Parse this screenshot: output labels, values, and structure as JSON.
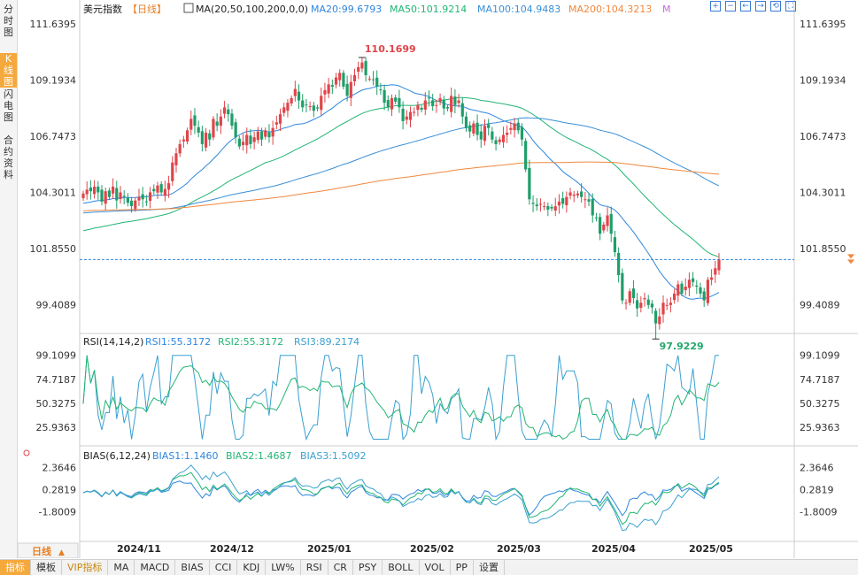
{
  "left_nav": [
    {
      "label": "分时图",
      "active": false
    },
    {
      "label": "K线图",
      "active": true
    },
    {
      "label": "闪电图",
      "active": false
    },
    {
      "label": "合约资料",
      "active": false
    }
  ],
  "header": {
    "title": "美元指数",
    "period": "【日线】",
    "ma_label": "MA(20,50,100,200,0,0)",
    "ma_values": [
      {
        "text": "MA20:99.6793",
        "color": "#2e86de"
      },
      {
        "text": "MA50:101.9214",
        "color": "#22b573"
      },
      {
        "text": "MA100:104.9483",
        "color": "#3a8fd6"
      },
      {
        "text": "MA200:104.3213",
        "color": "#f0883e"
      },
      {
        "text": "M",
        "color": "#c36bd9"
      }
    ]
  },
  "toolbar": [
    "+",
    "−",
    "←",
    "→",
    "⟲",
    "⛶"
  ],
  "chart_data": {
    "type": "candlestick",
    "instrument": "美元指数",
    "period": "日线",
    "y_ticks": [
      "111.6395",
      "109.1934",
      "106.7473",
      "104.3011",
      "101.8550",
      "99.4089"
    ],
    "ylim": [
      98.2,
      111.9
    ],
    "x_ticks": [
      "2024/11",
      "2024/12",
      "2025/01",
      "2025/02",
      "2025/03",
      "2025/04",
      "2025/05"
    ],
    "annotations": {
      "high": "110.1699",
      "low": "97.9229"
    },
    "current_price": 101.38,
    "ohlc_close": [
      104.25,
      104.42,
      104.35,
      104.55,
      104.3,
      103.9,
      104.35,
      104.1,
      104.55,
      103.95,
      104.3,
      104.1,
      103.85,
      103.7,
      103.95,
      104.1,
      104.0,
      103.9,
      104.3,
      104.35,
      104.6,
      104.3,
      104.45,
      104.7,
      105.6,
      106.0,
      106.4,
      106.6,
      107.0,
      107.5,
      107.2,
      106.9,
      106.4,
      106.9,
      106.6,
      107.5,
      107.2,
      107.6,
      108.0,
      107.7,
      107.2,
      106.7,
      106.3,
      106.5,
      106.8,
      106.4,
      106.7,
      106.95,
      106.6,
      107.0,
      106.7,
      107.1,
      107.35,
      107.7,
      108.0,
      108.2,
      108.4,
      108.8,
      108.3,
      108.0,
      108.1,
      108.05,
      107.85,
      107.95,
      108.5,
      108.75,
      109.0,
      108.9,
      109.3,
      109.5,
      108.9,
      108.5,
      109.1,
      109.4,
      109.75,
      109.95,
      109.4,
      109.25,
      109.2,
      108.9,
      108.75,
      108.2,
      108.0,
      108.4,
      108.25,
      108.0,
      107.4,
      107.6,
      107.8,
      107.8,
      108.1,
      107.9,
      108.3,
      108.4,
      108.05,
      108.1,
      108.4,
      107.95,
      107.95,
      108.5,
      108.1,
      108.3,
      107.6,
      107.1,
      106.95,
      107.3,
      106.8,
      106.6,
      107.2,
      107.1,
      106.6,
      106.4,
      106.6,
      106.8,
      106.9,
      107.1,
      107.3,
      107.0,
      106.6,
      105.3,
      104.0,
      103.8,
      103.7,
      103.8,
      103.7,
      103.55,
      103.6,
      103.7,
      103.9,
      103.8,
      104.1,
      104.3,
      104.2,
      104.25,
      104.1,
      104.0,
      103.9,
      103.3,
      103.2,
      102.5,
      102.9,
      103.3,
      102.5,
      101.7,
      100.7,
      99.6,
      99.5,
      100.0,
      99.7,
      99.25,
      99.5,
      99.7,
      99.4,
      99.3,
      98.6,
      98.9,
      99.5,
      99.4,
      99.5,
      99.9,
      100.3,
      99.9,
      100.2,
      100.5,
      100.4,
      100.2,
      99.9,
      99.6,
      100.5,
      100.6,
      101.0,
      101.38
    ],
    "ma_series_names": [
      "MA20",
      "MA50",
      "MA100",
      "MA200"
    ],
    "rsi": {
      "label": "RSI(14,14,2)",
      "values": [
        {
          "text": "RSI1:55.3172",
          "color": "#2e86de"
        },
        {
          "text": "RSI2:55.3172",
          "color": "#22b573"
        },
        {
          "text": "RSI3:89.2174",
          "color": "#3aa0d0"
        }
      ],
      "y_ticks": [
        "99.1099",
        "74.7187",
        "50.3275",
        "25.9363"
      ],
      "ylim": [
        10,
        106
      ]
    },
    "bias": {
      "label": "BIAS(6,12,24)",
      "values": [
        {
          "text": "BIAS1:1.1460",
          "color": "#2e86de"
        },
        {
          "text": "BIAS2:1.4687",
          "color": "#22b573"
        },
        {
          "text": "BIAS3:1.5092",
          "color": "#3aa0d0"
        }
      ],
      "y_ticks": [
        "2.3646",
        "0.2819",
        "-1.8009"
      ],
      "ylim": [
        -4.4,
        3.0
      ]
    }
  },
  "bottom": {
    "period_button": "日线",
    "indicator_tabs": [
      "指标",
      "模板",
      "VIP指标",
      "MA",
      "MACD",
      "BIAS",
      "CCI",
      "KDJ",
      "LW%",
      "RSI",
      "CR",
      "PSY",
      "BOLL",
      "VOL",
      "PP",
      "设置"
    ]
  }
}
